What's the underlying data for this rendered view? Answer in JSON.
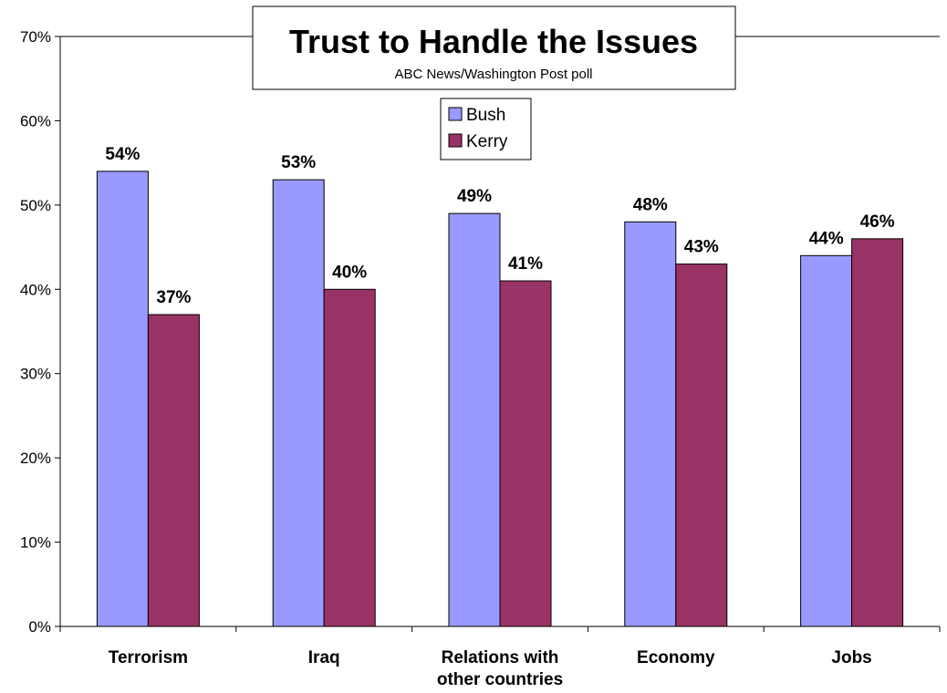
{
  "chart_data": {
    "type": "bar",
    "title": "Trust to Handle the Issues",
    "subtitle": "ABC News/Washington Post poll",
    "categories": [
      [
        "Terrorism"
      ],
      [
        "Iraq"
      ],
      [
        "Relations with",
        "other countries"
      ],
      [
        "Economy"
      ],
      [
        "Jobs"
      ]
    ],
    "series": [
      {
        "name": "Bush",
        "color": "#9999ff",
        "values": [
          54,
          53,
          49,
          48,
          44
        ]
      },
      {
        "name": "Kerry",
        "color": "#993366",
        "values": [
          37,
          40,
          41,
          43,
          46
        ]
      }
    ],
    "ylim": [
      0,
      70
    ],
    "yticks": [
      0,
      10,
      20,
      30,
      40,
      50,
      60,
      70
    ],
    "tick_suffix": "%",
    "data_label_suffix": "%",
    "legend": "top-center",
    "grid": false
  }
}
